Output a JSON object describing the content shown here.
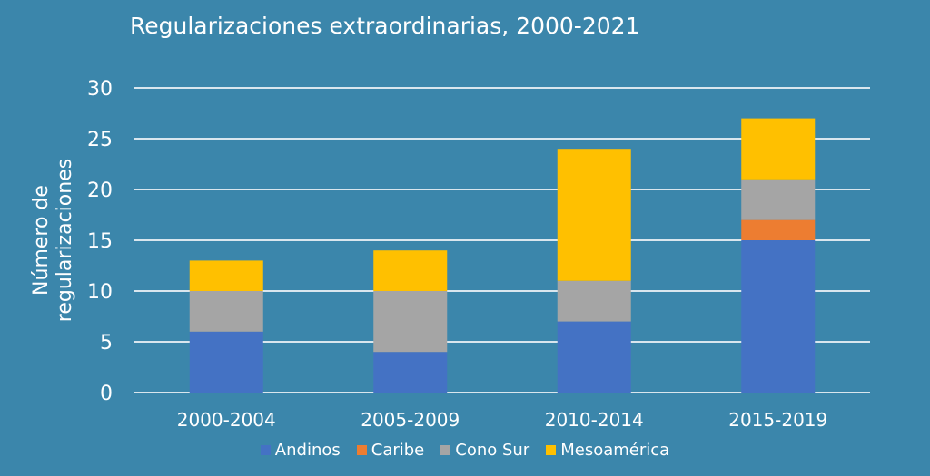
{
  "chart_data": {
    "type": "bar",
    "stacked": true,
    "title": "Regularizaciones extraordinarias, 2000-2021",
    "ylabel": "Número de regularizaciones",
    "ylabel_lines": [
      "Número de",
      "regularizaciones"
    ],
    "xlabel": "",
    "ylim": [
      0,
      30
    ],
    "yticks": [
      0,
      5,
      10,
      15,
      20,
      25,
      30
    ],
    "grid": true,
    "legend_position": "bottom",
    "categories": [
      "2000-2004",
      "2005-2009",
      "2010-2014",
      "2015-2019"
    ],
    "series": [
      {
        "name": "Andinos",
        "color": "#4472c4",
        "values": [
          6,
          4,
          7,
          15
        ]
      },
      {
        "name": "Caribe",
        "color": "#ed7d31",
        "values": [
          0,
          0,
          0,
          2
        ]
      },
      {
        "name": "Cono Sur",
        "color": "#a5a5a5",
        "values": [
          4,
          6,
          4,
          4
        ]
      },
      {
        "name": "Mesoamérica",
        "color": "#ffc000",
        "values": [
          3,
          4,
          13,
          6
        ]
      }
    ],
    "background": "#3b86ab"
  }
}
